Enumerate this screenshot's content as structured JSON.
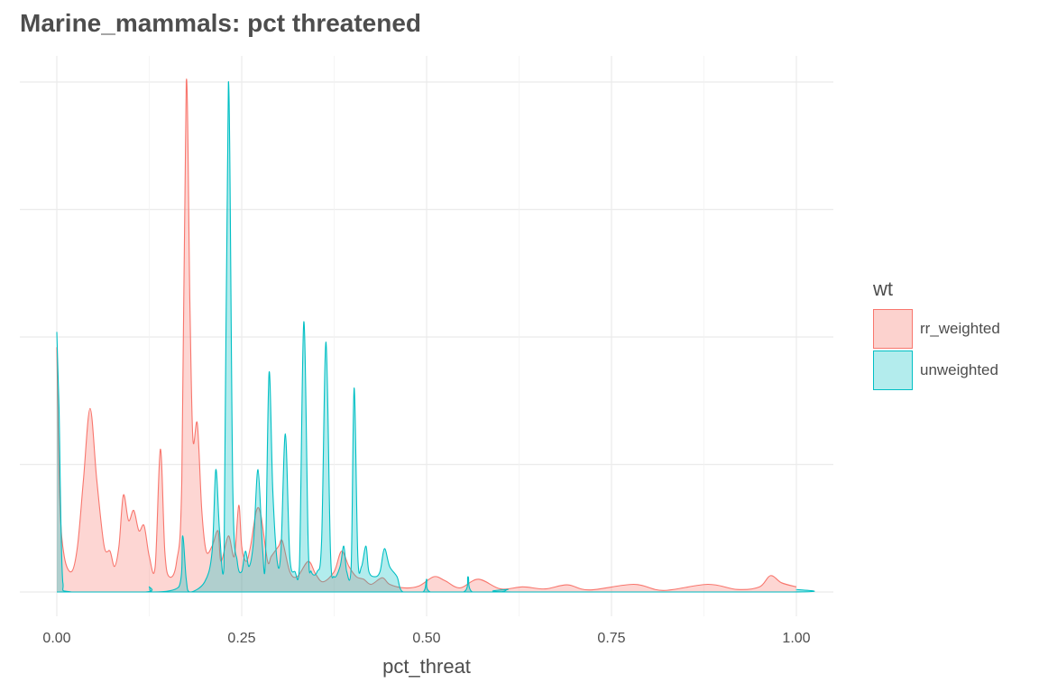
{
  "chart_data": {
    "type": "area",
    "title": "Marine_mammals: pct threatened",
    "xlabel": "pct_threat",
    "ylabel": "",
    "xlim": [
      0,
      1
    ],
    "ylim": [
      0,
      10
    ],
    "x_ticks": [
      0,
      0.25,
      0.5,
      0.75,
      1.0
    ],
    "x_tick_labels": [
      "0.00",
      "0.25",
      "0.50",
      "0.75",
      "1.00"
    ],
    "grid": true,
    "legend_title": "wt",
    "legend_position": "right",
    "series": [
      {
        "name": "rr_weighted",
        "color": "#f8766d",
        "fill": "#fcd2ce",
        "points": [
          [
            0.0,
            4.8
          ],
          [
            0.004,
            1.8
          ],
          [
            0.01,
            0.7
          ],
          [
            0.02,
            0.4
          ],
          [
            0.028,
            0.9
          ],
          [
            0.036,
            2.2
          ],
          [
            0.045,
            3.6
          ],
          [
            0.054,
            2.2
          ],
          [
            0.064,
            0.9
          ],
          [
            0.072,
            0.8
          ],
          [
            0.078,
            0.5
          ],
          [
            0.084,
            0.9
          ],
          [
            0.09,
            1.9
          ],
          [
            0.097,
            1.4
          ],
          [
            0.104,
            1.6
          ],
          [
            0.111,
            1.2
          ],
          [
            0.118,
            1.3
          ],
          [
            0.125,
            0.7
          ],
          [
            0.133,
            0.5
          ],
          [
            0.14,
            2.8
          ],
          [
            0.146,
            0.8
          ],
          [
            0.152,
            0.3
          ],
          [
            0.162,
            0.6
          ],
          [
            0.169,
            2.2
          ],
          [
            0.175,
            10.0
          ],
          [
            0.18,
            5.6
          ],
          [
            0.184,
            3.0
          ],
          [
            0.19,
            3.3
          ],
          [
            0.196,
            1.6
          ],
          [
            0.202,
            0.8
          ],
          [
            0.21,
            0.9
          ],
          [
            0.218,
            1.2
          ],
          [
            0.222,
            0.6
          ],
          [
            0.232,
            1.1
          ],
          [
            0.24,
            0.7
          ],
          [
            0.246,
            1.7
          ],
          [
            0.25,
            0.9
          ],
          [
            0.256,
            0.6
          ],
          [
            0.262,
            0.9
          ],
          [
            0.27,
            1.6
          ],
          [
            0.276,
            1.5
          ],
          [
            0.285,
            0.6
          ],
          [
            0.29,
            0.7
          ],
          [
            0.3,
            0.9
          ],
          [
            0.305,
            1.0
          ],
          [
            0.315,
            0.4
          ],
          [
            0.325,
            0.3
          ],
          [
            0.34,
            0.6
          ],
          [
            0.35,
            0.35
          ],
          [
            0.36,
            0.2
          ],
          [
            0.375,
            0.4
          ],
          [
            0.385,
            0.8
          ],
          [
            0.395,
            0.5
          ],
          [
            0.405,
            0.3
          ],
          [
            0.415,
            0.25
          ],
          [
            0.425,
            0.15
          ],
          [
            0.44,
            0.28
          ],
          [
            0.45,
            0.15
          ],
          [
            0.47,
            0.08
          ],
          [
            0.49,
            0.12
          ],
          [
            0.51,
            0.3
          ],
          [
            0.525,
            0.22
          ],
          [
            0.545,
            0.08
          ],
          [
            0.57,
            0.25
          ],
          [
            0.6,
            0.06
          ],
          [
            0.63,
            0.1
          ],
          [
            0.66,
            0.06
          ],
          [
            0.69,
            0.14
          ],
          [
            0.72,
            0.04
          ],
          [
            0.78,
            0.15
          ],
          [
            0.82,
            0.03
          ],
          [
            0.88,
            0.15
          ],
          [
            0.92,
            0.05
          ],
          [
            0.95,
            0.1
          ],
          [
            0.965,
            0.32
          ],
          [
            0.98,
            0.18
          ],
          [
            1.0,
            0.1
          ]
        ]
      },
      {
        "name": "unweighted",
        "color": "#00bfc4",
        "fill": "#b3eced",
        "points": [
          [
            0.0,
            5.1
          ],
          [
            0.003,
            3.6
          ],
          [
            0.008,
            0.2
          ],
          [
            0.02,
            0.0
          ],
          [
            0.12,
            0.0
          ],
          [
            0.125,
            0.1
          ],
          [
            0.13,
            0.0
          ],
          [
            0.165,
            0.1
          ],
          [
            0.17,
            1.1
          ],
          [
            0.175,
            0.25
          ],
          [
            0.18,
            0.0
          ],
          [
            0.2,
            0.2
          ],
          [
            0.21,
            0.8
          ],
          [
            0.215,
            2.4
          ],
          [
            0.22,
            1.2
          ],
          [
            0.226,
            0.5
          ],
          [
            0.232,
            10.0
          ],
          [
            0.238,
            2.0
          ],
          [
            0.244,
            0.6
          ],
          [
            0.25,
            0.4
          ],
          [
            0.255,
            0.8
          ],
          [
            0.26,
            0.5
          ],
          [
            0.266,
            1.0
          ],
          [
            0.272,
            2.4
          ],
          [
            0.278,
            0.9
          ],
          [
            0.282,
            0.6
          ],
          [
            0.287,
            4.3
          ],
          [
            0.292,
            2.0
          ],
          [
            0.298,
            0.6
          ],
          [
            0.303,
            0.8
          ],
          [
            0.309,
            3.1
          ],
          [
            0.315,
            0.7
          ],
          [
            0.322,
            0.4
          ],
          [
            0.328,
            0.5
          ],
          [
            0.334,
            5.3
          ],
          [
            0.34,
            0.9
          ],
          [
            0.344,
            0.4
          ],
          [
            0.352,
            0.4
          ],
          [
            0.358,
            1.0
          ],
          [
            0.364,
            4.9
          ],
          [
            0.37,
            0.8
          ],
          [
            0.375,
            0.3
          ],
          [
            0.383,
            0.5
          ],
          [
            0.388,
            0.9
          ],
          [
            0.392,
            0.4
          ],
          [
            0.398,
            0.5
          ],
          [
            0.402,
            4.0
          ],
          [
            0.407,
            0.7
          ],
          [
            0.412,
            0.5
          ],
          [
            0.418,
            0.9
          ],
          [
            0.422,
            0.4
          ],
          [
            0.43,
            0.3
          ],
          [
            0.437,
            0.4
          ],
          [
            0.443,
            0.85
          ],
          [
            0.45,
            0.5
          ],
          [
            0.46,
            0.3
          ],
          [
            0.468,
            0.0
          ],
          [
            0.495,
            0.0
          ],
          [
            0.5,
            0.25
          ],
          [
            0.505,
            0.0
          ],
          [
            0.55,
            0.0
          ],
          [
            0.556,
            0.3
          ],
          [
            0.562,
            0.0
          ],
          [
            0.6,
            0.0
          ],
          [
            0.61,
            0.05
          ],
          [
            0.62,
            0.0
          ],
          [
            0.995,
            0.0
          ],
          [
            1.0,
            0.05
          ]
        ]
      }
    ]
  },
  "legend": {
    "title": "wt",
    "items": [
      "rr_weighted",
      "unweighted"
    ]
  }
}
